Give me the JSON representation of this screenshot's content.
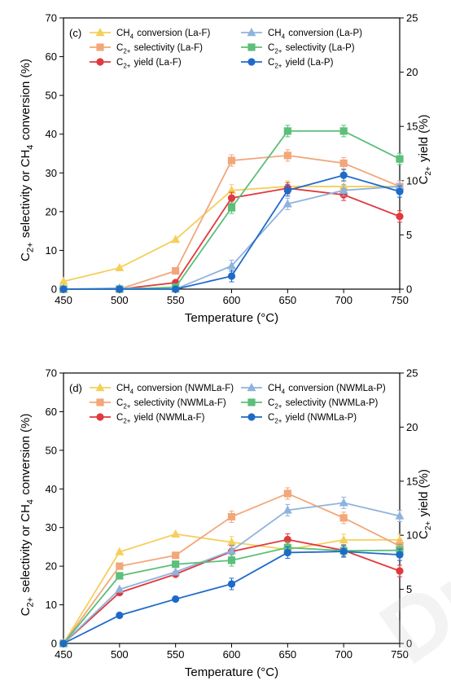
{
  "chart_data": [
    {
      "type": "line",
      "panel_label": "(c)",
      "xlabel": "Temperature (°C)",
      "ylabel_left": "C2+ selectivity or CH4 conversion (%)",
      "ylabel_right": "C2+ yield (%)",
      "x": [
        450,
        500,
        550,
        600,
        650,
        700,
        750
      ],
      "xlim": [
        450,
        750
      ],
      "ylim_left": [
        0,
        70
      ],
      "ylim_right": [
        0,
        25
      ],
      "xticks": [
        450,
        500,
        550,
        600,
        650,
        700,
        750
      ],
      "yticks_left": [
        0,
        10,
        20,
        30,
        40,
        50,
        60,
        70
      ],
      "yticks_right": [
        0,
        5,
        10,
        15,
        20,
        25
      ],
      "legend_placement": "top",
      "series": [
        {
          "name": "CH4 conversion (La-F)",
          "color": "#f5cf5a",
          "marker": "triangle",
          "axis": "left",
          "values": [
            2,
            5.5,
            12.8,
            25.5,
            26.5,
            26.5,
            26.5
          ]
        },
        {
          "name": "C2+ selectivity (La-F)",
          "color": "#f2a77a",
          "marker": "square",
          "axis": "left",
          "values": [
            0,
            0,
            4.7,
            33.2,
            34.5,
            32.5,
            26.5
          ]
        },
        {
          "name": "C2+ yield (La-F)",
          "color": "#e0393e",
          "marker": "circle",
          "axis": "right",
          "values": [
            0,
            0,
            0.6,
            8.4,
            9.3,
            8.7,
            6.7
          ]
        },
        {
          "name": "CH4 conversion (La-P)",
          "color": "#8fb3de",
          "marker": "triangle",
          "axis": "left",
          "values": [
            0,
            0.3,
            0,
            6,
            22,
            25.5,
            26.5
          ]
        },
        {
          "name": "C2+ selectivity (La-P)",
          "color": "#5cbf7a",
          "marker": "square",
          "axis": "left",
          "values": [
            0,
            0,
            0.5,
            21,
            40.8,
            40.8,
            33.6
          ]
        },
        {
          "name": "C2+ yield (La-P)",
          "color": "#1f6ac9",
          "marker": "circle",
          "axis": "right",
          "values": [
            0,
            0,
            0,
            1.2,
            9.1,
            10.5,
            9
          ]
        }
      ]
    },
    {
      "type": "line",
      "panel_label": "(d)",
      "xlabel": "Temperature (°C)",
      "ylabel_left": "C2+ selectivity or CH4 conversion (%)",
      "ylabel_right": "C2+ yield (%)",
      "x": [
        450,
        500,
        550,
        600,
        650,
        700,
        750
      ],
      "xlim": [
        450,
        750
      ],
      "ylim_left": [
        0,
        70
      ],
      "ylim_right": [
        0,
        25
      ],
      "xticks": [
        450,
        500,
        550,
        600,
        650,
        700,
        750
      ],
      "yticks_left": [
        0,
        10,
        20,
        30,
        40,
        50,
        60,
        70
      ],
      "yticks_right": [
        0,
        5,
        10,
        15,
        20,
        25
      ],
      "legend_placement": "top",
      "series": [
        {
          "name": "CH4 conversion (NWMLa-F)",
          "color": "#f5cf5a",
          "marker": "triangle",
          "axis": "left",
          "values": [
            0,
            23.7,
            28.3,
            26.2,
            24.3,
            26.8,
            26.8
          ]
        },
        {
          "name": "C2+ selectivity (NWMLa-F)",
          "color": "#f2a77a",
          "marker": "square",
          "axis": "left",
          "values": [
            0,
            20,
            22.8,
            32.8,
            38.8,
            32.5,
            25.2
          ]
        },
        {
          "name": "C2+ yield (NWMLa-F)",
          "color": "#e0393e",
          "marker": "circle",
          "axis": "right",
          "values": [
            0,
            4.7,
            6.4,
            8.5,
            9.6,
            8.6,
            6.7
          ]
        },
        {
          "name": "CH4 conversion (NWMLa-P)",
          "color": "#8fb3de",
          "marker": "triangle",
          "axis": "left",
          "values": [
            0,
            14,
            18.5,
            24,
            34.5,
            36.4,
            33
          ]
        },
        {
          "name": "C2+ selectivity (NWMLa-P)",
          "color": "#5cbf7a",
          "marker": "square",
          "axis": "left",
          "values": [
            0,
            17.5,
            20.5,
            21.5,
            24.8,
            24,
            24.1
          ]
        },
        {
          "name": "C2+ yield (NWMLa-P)",
          "color": "#1f6ac9",
          "marker": "circle",
          "axis": "right",
          "values": [
            0,
            2.6,
            4.1,
            5.5,
            8.4,
            8.5,
            8.2
          ]
        }
      ]
    }
  ]
}
